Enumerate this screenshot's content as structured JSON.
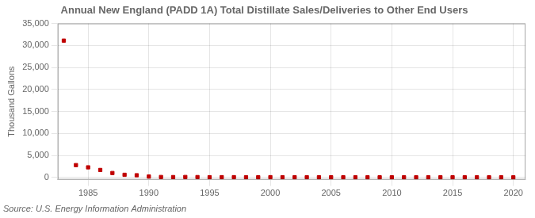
{
  "chart_data": {
    "type": "scatter",
    "title": "Annual New England (PADD 1A) Total Distillate Sales/Deliveries to Other End Users",
    "ylabel": "Thousand Gallons",
    "annotation": "Source: U.S. Energy Information Administration",
    "color": "#c00000",
    "marker": "square",
    "grid": true,
    "x": [
      1983,
      1984,
      1985,
      1986,
      1987,
      1988,
      1989,
      1990,
      1991,
      1992,
      1993,
      1994,
      1995,
      1996,
      1997,
      1998,
      1999,
      2000,
      2001,
      2002,
      2003,
      2004,
      2005,
      2006,
      2007,
      2008,
      2009,
      2010,
      2011,
      2012,
      2013,
      2014,
      2015,
      2016,
      2017,
      2018,
      2019,
      2020
    ],
    "values": [
      31100,
      2800,
      2300,
      1700,
      1000,
      600,
      500,
      200,
      100,
      80,
      100,
      80,
      50,
      60,
      60,
      50,
      40,
      60,
      50,
      40,
      50,
      40,
      40,
      40,
      30,
      30,
      30,
      30,
      30,
      30,
      30,
      30,
      40,
      30,
      30,
      30,
      30,
      20
    ],
    "xlim": [
      1982.5,
      2021
    ],
    "xticks": [
      1985,
      1990,
      1995,
      2000,
      2005,
      2010,
      2015,
      2020
    ],
    "ylim": [
      -500,
      35000
    ],
    "yticks": [
      0,
      {
        "value": 5000,
        "label": "5,000"
      },
      {
        "value": 10000,
        "label": "10,000"
      },
      {
        "value": 15000,
        "label": "15,000"
      },
      {
        "value": 20000,
        "label": "20,000"
      },
      {
        "value": 25000,
        "label": "25,000"
      },
      {
        "value": 30000,
        "label": "30,000"
      },
      {
        "value": 35000,
        "label": "35,000"
      }
    ]
  }
}
